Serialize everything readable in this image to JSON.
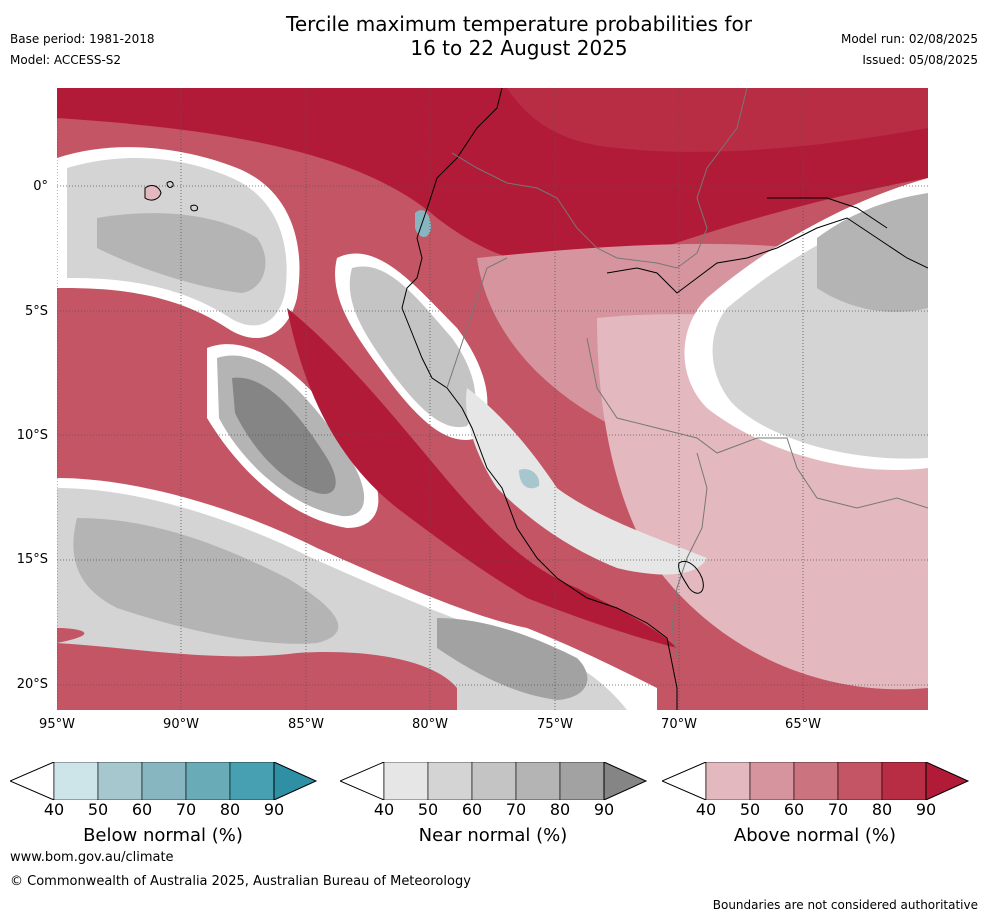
{
  "header": {
    "title_line1": "Tercile maximum temperature probabilities for",
    "title_line2": "16 to 22 August 2025",
    "base_period": "Base period: 1981-2018",
    "model": "Model: ACCESS-S2",
    "model_run": "Model run: 02/08/2025",
    "issued": "Issued: 05/08/2025"
  },
  "axes": {
    "y_ticks": [
      "0°",
      "5°S",
      "10°S",
      "15°S",
      "20°S"
    ],
    "x_ticks": [
      "95°W",
      "90°W",
      "85°W",
      "80°W",
      "75°W",
      "70°W",
      "65°W"
    ]
  },
  "colorbars": [
    {
      "label": "Below normal (%)",
      "ticks": [
        "40",
        "50",
        "60",
        "70",
        "80",
        "90"
      ],
      "colors": [
        "#cde4e9",
        "#a6c7cd",
        "#88b6c0",
        "#6aabb8",
        "#46a0b1",
        "#2f8fa4"
      ]
    },
    {
      "label": "Near normal (%)",
      "ticks": [
        "40",
        "50",
        "60",
        "70",
        "80",
        "90"
      ],
      "colors": [
        "#e6e6e6",
        "#d4d4d4",
        "#c4c4c4",
        "#b4b4b4",
        "#a2a2a2",
        "#858585"
      ]
    },
    {
      "label": "Above normal (%)",
      "ticks": [
        "40",
        "50",
        "60",
        "70",
        "80",
        "90"
      ],
      "colors": [
        "#e3b9bf",
        "#d6959e",
        "#cb737f",
        "#c45564",
        "#b82c44",
        "#b11b38"
      ]
    }
  ],
  "footer": {
    "url": "www.bom.gov.au/climate",
    "copyright": "© Commonwealth of Australia 2025, Australian Bureau of Meteorology",
    "disclaimer": "Boundaries are not considered authoritative"
  }
}
